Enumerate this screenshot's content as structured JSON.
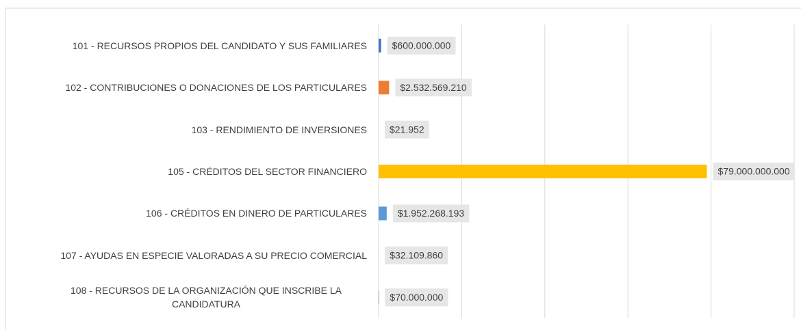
{
  "chart_data": {
    "type": "bar",
    "orientation": "horizontal",
    "categories": [
      "101 - RECURSOS PROPIOS DEL CANDIDATO Y SUS FAMILIARES",
      "102 - CONTRIBUCIONES O DONACIONES DE LOS PARTICULARES",
      "103 - RENDIMIENTO DE INVERSIONES",
      "105 - CRÉDITOS DEL SECTOR FINANCIERO",
      "106 - CRÉDITOS EN DINERO DE PARTICULARES",
      "107 - AYUDAS EN ESPECIE VALORADAS A SU PRECIO COMERCIAL",
      "108 - RECURSOS DE LA ORGANIZACIÓN QUE INSCRIBE LA CANDIDATURA"
    ],
    "values": [
      600000000,
      2532569210,
      21952,
      79000000000,
      1952268193,
      32109860,
      70000000
    ],
    "value_labels": [
      "$600.000.000",
      "$2.532.569.210",
      "$21.952",
      "$79.000.000.000",
      "$1.952.268.193",
      "$32.109.860",
      "$70.000.000"
    ],
    "colors": [
      "#4472c4",
      "#ed7d31",
      "#a5a5a5",
      "#ffc000",
      "#5b9bd5",
      "#70ad47",
      "#264478"
    ],
    "xlim": [
      0,
      100000000000
    ],
    "xticks": [
      0,
      20000000000,
      40000000000,
      60000000000,
      80000000000,
      100000000000
    ],
    "grid": true
  }
}
